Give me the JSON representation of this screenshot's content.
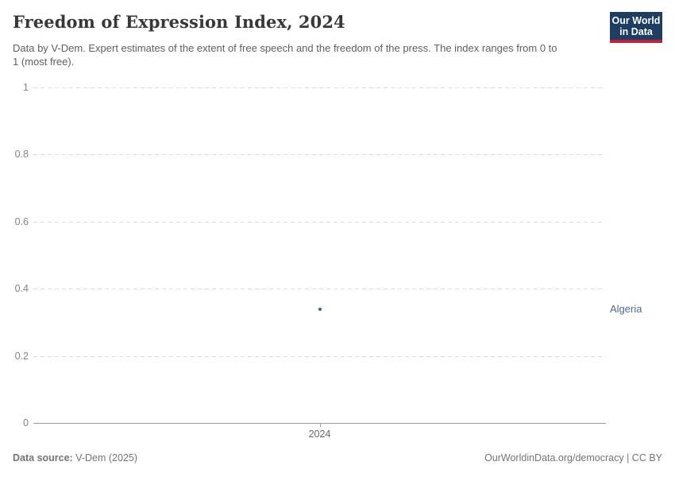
{
  "header": {
    "title": "Freedom of Expression Index, 2024",
    "subtitle": "Data by V-Dem. Expert estimates of the extent of free speech and the freedom of the press. The index ranges from 0 to 1 (most free).",
    "logo": {
      "line1": "Our World",
      "line2": "in Data",
      "bg_color": "#1d3d63",
      "stripe_color": "#c0243c"
    }
  },
  "chart_data": {
    "type": "scatter",
    "title": "Freedom of Expression Index, 2024",
    "x": [
      2024
    ],
    "xtick_labels": [
      "2024"
    ],
    "series": [
      {
        "name": "Algeria",
        "values": [
          0.34
        ],
        "label_color": "#4c6a9c",
        "point_color": "#3d63a3"
      }
    ],
    "yticks": [
      1,
      0.8,
      0.6,
      0.4,
      0.2,
      0
    ],
    "ytick_labels": [
      "1",
      "0.8",
      "0.6",
      "0.4",
      "0.2",
      "0"
    ],
    "ylim": [
      0,
      1
    ],
    "xlabel": "",
    "ylabel": "",
    "grid": "horizontal-dashed",
    "legend_position": "right-of-plot"
  },
  "footer": {
    "source_label": "Data source:",
    "source_value": " V-Dem (2025)",
    "link": "OurWorldinData.org/democracy",
    "separator": " | ",
    "license": "CC BY"
  }
}
